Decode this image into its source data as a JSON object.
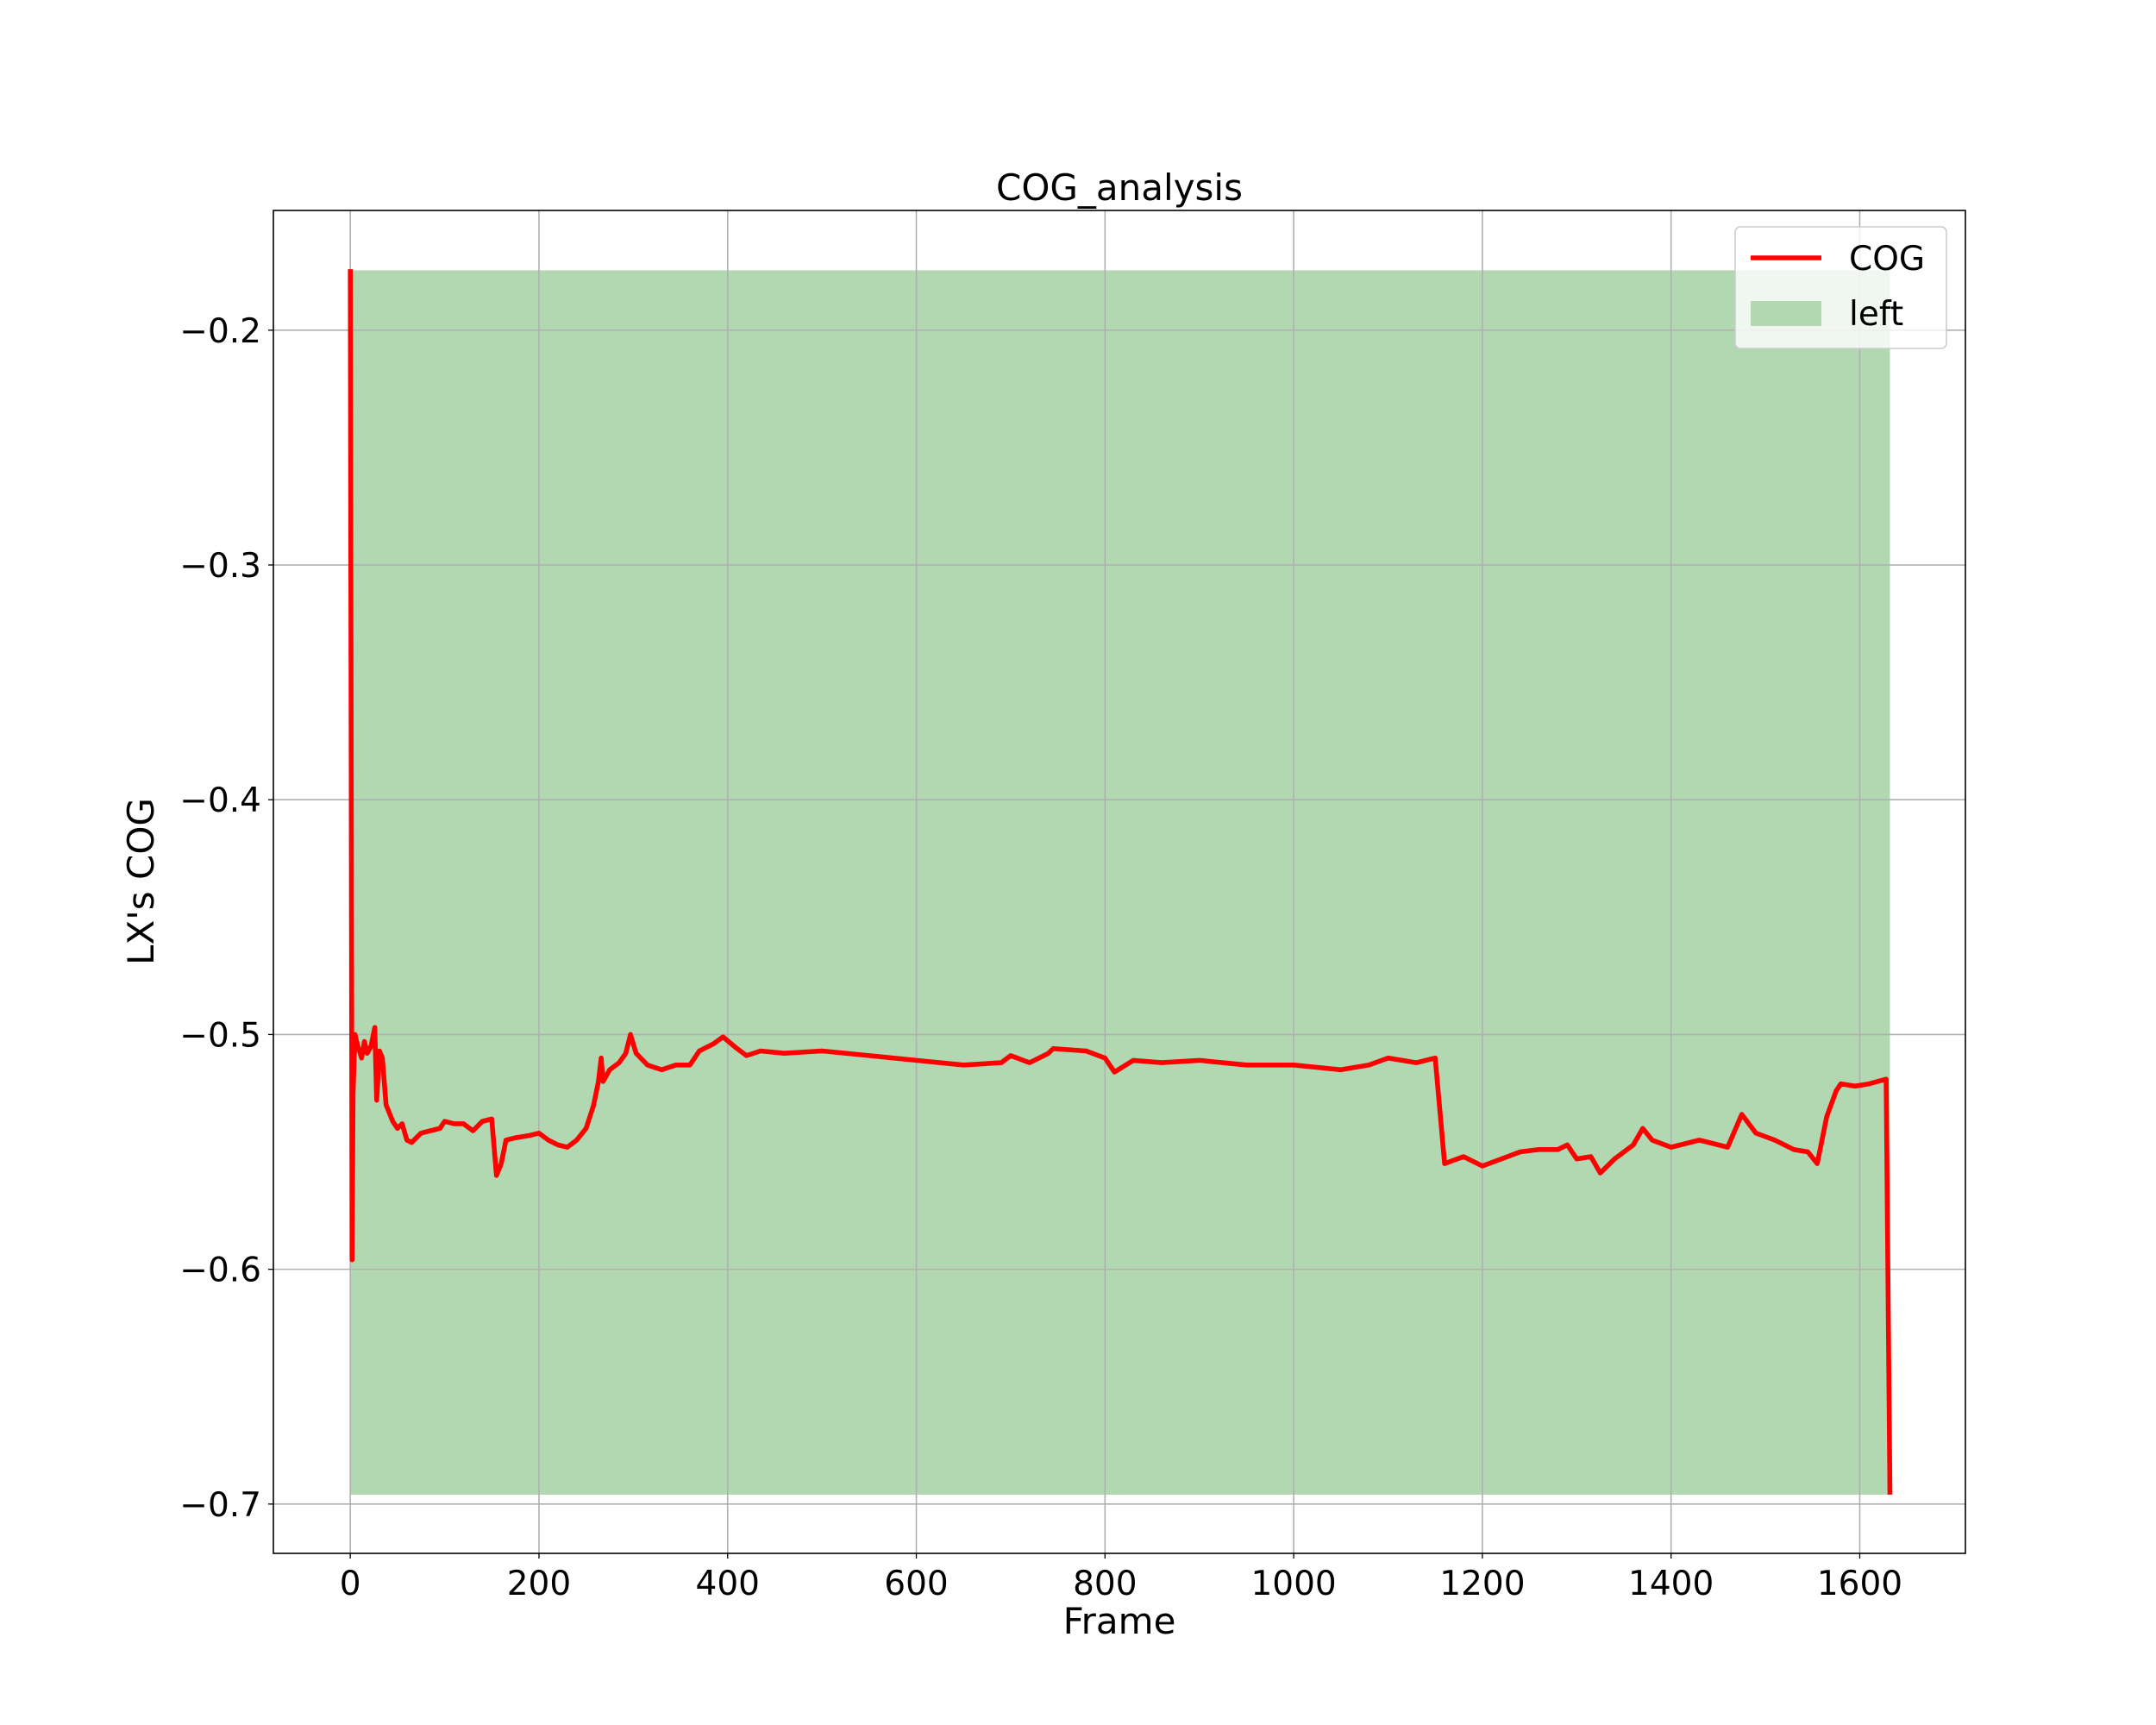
{
  "chart_data": {
    "type": "line",
    "title": "COG_analysis",
    "x_label": "Frame",
    "y_label": "LX's COG",
    "xlim": [
      -81.5,
      1712
    ],
    "ylim": [
      -0.721,
      -0.149
    ],
    "xticks": [
      0,
      200,
      400,
      600,
      800,
      1000,
      1200,
      1400,
      1600
    ],
    "yticks": [
      {
        "value": -0.7,
        "label": "−0.7"
      },
      {
        "value": -0.6,
        "label": "−0.6"
      },
      {
        "value": -0.5,
        "label": "−0.5"
      },
      {
        "value": -0.4,
        "label": "−0.4"
      },
      {
        "value": -0.3,
        "label": "−0.3"
      },
      {
        "value": -0.2,
        "label": "−0.2"
      }
    ],
    "grid": true,
    "legend_position": "upper right",
    "band": {
      "name": "left",
      "color": "#b2d8b2",
      "x": [
        0,
        1632
      ],
      "y": [
        -0.696,
        -0.1745
      ]
    },
    "series": [
      {
        "name": "COG",
        "color": "#ff0000",
        "x": [
          0,
          2,
          3,
          5,
          8,
          12,
          15,
          18,
          22,
          26,
          28,
          31,
          34,
          38,
          45,
          50,
          55,
          60,
          65,
          75,
          85,
          95,
          100,
          110,
          120,
          130,
          140,
          150,
          155,
          160,
          165,
          175,
          190,
          200,
          210,
          220,
          230,
          240,
          250,
          258,
          263,
          266,
          268,
          275,
          285,
          292,
          297,
          303,
          315,
          330,
          345,
          360,
          370,
          385,
          395,
          410,
          420,
          435,
          460,
          500,
          550,
          600,
          650,
          690,
          700,
          720,
          740,
          745,
          780,
          800,
          810,
          830,
          860,
          900,
          950,
          1000,
          1050,
          1080,
          1100,
          1130,
          1140,
          1150,
          1160,
          1180,
          1200,
          1220,
          1240,
          1260,
          1280,
          1290,
          1300,
          1315,
          1325,
          1340,
          1360,
          1370,
          1380,
          1400,
          1430,
          1460,
          1475,
          1490,
          1510,
          1530,
          1545,
          1555,
          1565,
          1575,
          1580,
          1595,
          1610,
          1628,
          1632
        ],
        "values": [
          -0.174,
          -0.596,
          -0.525,
          -0.5,
          -0.505,
          -0.51,
          -0.503,
          -0.508,
          -0.505,
          -0.497,
          -0.528,
          -0.507,
          -0.51,
          -0.53,
          -0.537,
          -0.54,
          -0.538,
          -0.545,
          -0.546,
          -0.542,
          -0.541,
          -0.54,
          -0.537,
          -0.538,
          -0.538,
          -0.541,
          -0.537,
          -0.536,
          -0.56,
          -0.555,
          -0.545,
          -0.544,
          -0.543,
          -0.542,
          -0.545,
          -0.547,
          -0.548,
          -0.545,
          -0.54,
          -0.53,
          -0.52,
          -0.51,
          -0.52,
          -0.515,
          -0.512,
          -0.508,
          -0.5,
          -0.508,
          -0.513,
          -0.515,
          -0.513,
          -0.513,
          -0.507,
          -0.504,
          -0.501,
          -0.506,
          -0.509,
          -0.507,
          -0.508,
          -0.507,
          -0.509,
          -0.511,
          -0.513,
          -0.512,
          -0.509,
          -0.512,
          -0.508,
          -0.506,
          -0.507,
          -0.51,
          -0.516,
          -0.511,
          -0.512,
          -0.511,
          -0.513,
          -0.513,
          -0.515,
          -0.513,
          -0.51,
          -0.512,
          -0.511,
          -0.51,
          -0.555,
          -0.552,
          -0.556,
          -0.553,
          -0.55,
          -0.549,
          -0.549,
          -0.547,
          -0.553,
          -0.552,
          -0.559,
          -0.553,
          -0.547,
          -0.54,
          -0.545,
          -0.548,
          -0.545,
          -0.548,
          -0.534,
          -0.542,
          -0.545,
          -0.549,
          -0.55,
          -0.555,
          -0.535,
          -0.524,
          -0.521,
          -0.522,
          -0.521,
          -0.519,
          -0.696
        ]
      }
    ]
  }
}
